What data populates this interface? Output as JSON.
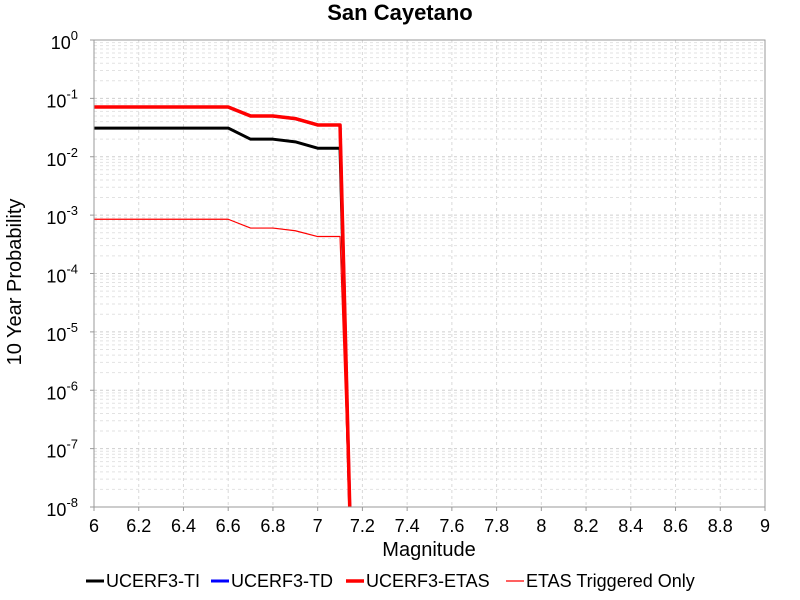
{
  "chart_data": {
    "type": "line",
    "title": "San Cayetano",
    "xlabel": "Magnitude",
    "ylabel": "10 Year Probability",
    "x_scale": "linear",
    "y_scale": "log",
    "xlim": [
      6,
      9
    ],
    "ylim": [
      1e-08,
      1
    ],
    "grid": true,
    "legend_position": "bottom",
    "x_ticks": [
      "6",
      "6.2",
      "6.4",
      "6.6",
      "6.8",
      "7",
      "7.2",
      "7.4",
      "7.6",
      "7.8",
      "8",
      "8.2",
      "8.4",
      "8.6",
      "8.8",
      "9"
    ],
    "y_ticks": [
      {
        "base": "10",
        "exp": "0"
      },
      {
        "base": "10",
        "exp": "-1"
      },
      {
        "base": "10",
        "exp": "-2"
      },
      {
        "base": "10",
        "exp": "-3"
      },
      {
        "base": "10",
        "exp": "-4"
      },
      {
        "base": "10",
        "exp": "-5"
      },
      {
        "base": "10",
        "exp": "-6"
      },
      {
        "base": "10",
        "exp": "-7"
      },
      {
        "base": "10",
        "exp": "-8"
      }
    ],
    "series": [
      {
        "name": "UCERF3-TI",
        "color": "#000000",
        "x": [
          6.0,
          6.1,
          6.2,
          6.3,
          6.4,
          6.5,
          6.6,
          6.7,
          6.8,
          6.9,
          7.0,
          7.1,
          7.15
        ],
        "y": [
          0.031,
          0.031,
          0.031,
          0.031,
          0.031,
          0.031,
          0.031,
          0.02,
          0.02,
          0.018,
          0.014,
          0.014,
          1e-09
        ]
      },
      {
        "name": "UCERF3-TD",
        "color": "#0000ff",
        "x": [
          6.0,
          6.1,
          6.2,
          6.3,
          6.4,
          6.5,
          6.6,
          6.7,
          6.8,
          6.9,
          7.0,
          7.1,
          7.15
        ],
        "y": [
          0.071,
          0.071,
          0.071,
          0.071,
          0.071,
          0.071,
          0.071,
          0.05,
          0.05,
          0.045,
          0.035,
          0.035,
          1e-09
        ]
      },
      {
        "name": "UCERF3-ETAS",
        "color": "#ff0000",
        "x": [
          6.0,
          6.1,
          6.2,
          6.3,
          6.4,
          6.5,
          6.6,
          6.7,
          6.8,
          6.9,
          7.0,
          7.1,
          7.15
        ],
        "y": [
          0.071,
          0.071,
          0.071,
          0.071,
          0.071,
          0.071,
          0.071,
          0.05,
          0.05,
          0.045,
          0.035,
          0.035,
          1e-09
        ]
      },
      {
        "name": "ETAS Triggered Only",
        "color": "#ff0000",
        "x": [
          6.0,
          6.1,
          6.2,
          6.3,
          6.4,
          6.5,
          6.6,
          6.7,
          6.8,
          6.9,
          7.0,
          7.1,
          7.15
        ],
        "y": [
          0.00085,
          0.00085,
          0.00085,
          0.00085,
          0.00085,
          0.00085,
          0.00085,
          0.0006,
          0.0006,
          0.00054,
          0.00043,
          0.00043,
          1e-09
        ]
      }
    ]
  }
}
